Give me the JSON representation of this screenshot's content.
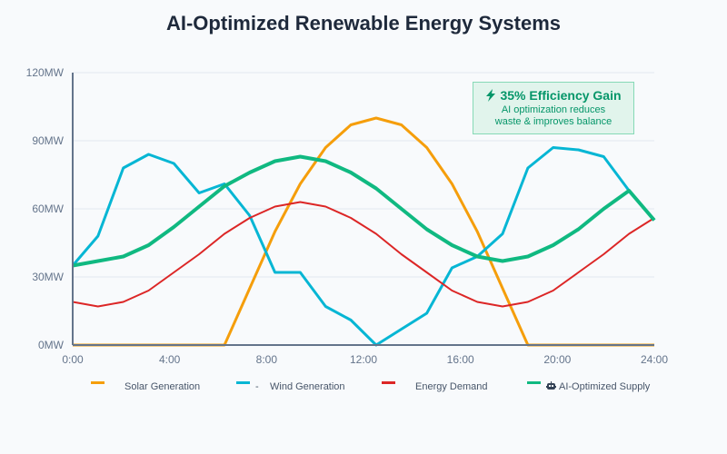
{
  "chart_data": {
    "type": "line",
    "title": "AI-Optimized Renewable Energy Systems",
    "xlabel": "",
    "ylabel": "",
    "x": [
      0,
      1,
      2,
      3,
      4,
      5,
      6,
      7,
      8,
      9,
      10,
      11,
      12,
      13,
      14,
      15,
      16,
      17,
      18,
      19,
      20,
      21,
      22,
      23
    ],
    "x_tick_labels": [
      "0:00",
      "4:00",
      "8:00",
      "12:00",
      "16:00",
      "20:00",
      "24:00"
    ],
    "x_tick_positions_hours": [
      0,
      4,
      8,
      12,
      16,
      20,
      24
    ],
    "y_tick_labels": [
      "0MW",
      "30MW",
      "60MW",
      "90MW",
      "120MW"
    ],
    "y_tick_values": [
      0,
      30,
      60,
      90,
      120
    ],
    "ylim": [
      0,
      120
    ],
    "xlim": [
      0,
      24
    ],
    "grid": true,
    "legend_position": "bottom",
    "series": [
      {
        "name": "Solar Generation",
        "color": "#f59e0b",
        "values": [
          0,
          0,
          0,
          0,
          0,
          0,
          0,
          25,
          50,
          71,
          87,
          97,
          100,
          97,
          87,
          71,
          50,
          25,
          0,
          0,
          0,
          0,
          0,
          0
        ]
      },
      {
        "name": "Wind Generation",
        "color": "#06b6d4",
        "values": [
          35,
          48,
          78,
          84,
          80,
          67,
          71,
          57,
          32,
          32,
          17,
          11,
          0,
          7,
          14,
          34,
          39,
          49,
          78,
          87,
          86,
          83,
          68,
          55
        ]
      },
      {
        "name": "Energy Demand",
        "color": "#dc2626",
        "values": [
          19,
          17,
          19,
          24,
          32,
          40,
          49,
          56,
          61,
          63,
          61,
          56,
          49,
          40,
          32,
          24,
          19,
          17,
          19,
          24,
          32,
          40,
          49,
          56
        ]
      },
      {
        "name": "AI-Optimized Supply",
        "color": "#10b981",
        "values": [
          35,
          37,
          39,
          44,
          52,
          61,
          70,
          76,
          81,
          83,
          81,
          76,
          69,
          60,
          51,
          44,
          39,
          37,
          39,
          44,
          51,
          60,
          68,
          55
        ]
      }
    ],
    "annotation": {
      "icon": "lightning-icon",
      "headline": "35% Efficiency Gain",
      "line1": "AI optimization reduces",
      "line2": "waste & improves balance"
    }
  },
  "legend": [
    {
      "label": "Solar Generation",
      "prefix": "",
      "color": "#f59e0b"
    },
    {
      "label": "Wind Generation",
      "prefix": "-",
      "color": "#06b6d4"
    },
    {
      "label": "Energy Demand",
      "prefix": "",
      "color": "#dc2626"
    },
    {
      "label": "AI-Optimized Supply",
      "prefix": "robot-icon",
      "color": "#10b981"
    }
  ],
  "colors": {
    "axis": "#64748b",
    "grid": "#e2e8f0",
    "title": "#1e293b",
    "accent": "#059669"
  }
}
